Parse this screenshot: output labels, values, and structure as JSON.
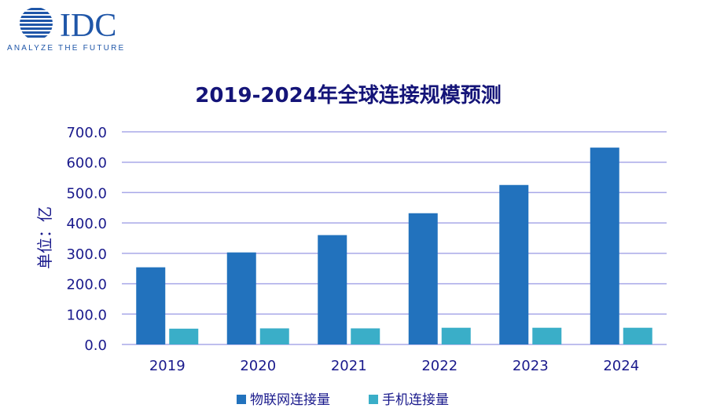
{
  "logo": {
    "brand": "IDC",
    "tagline": "ANALYZE THE FUTURE"
  },
  "chart_data": {
    "type": "bar",
    "title": "2019-2024年全球连接规模预测",
    "xlabel": "",
    "ylabel": "单位：亿",
    "categories": [
      "2019",
      "2020",
      "2021",
      "2022",
      "2023",
      "2024"
    ],
    "series": [
      {
        "name": "物联网连接量",
        "values": [
          254,
          303,
          360,
          432,
          525,
          648
        ],
        "color": "#2272bd"
      },
      {
        "name": "手机连接量",
        "values": [
          52,
          53,
          53,
          55,
          55,
          55
        ],
        "color": "#3aaec8"
      }
    ],
    "ylim": [
      0,
      700
    ],
    "yticks": [
      "0.0",
      "100.0",
      "200.0",
      "300.0",
      "400.0",
      "500.0",
      "600.0",
      "700.0"
    ],
    "grid": true,
    "legend": "bottom",
    "colors": {
      "text": "#1a1a8c",
      "grid": "#a8a8e8",
      "title": "#141478"
    }
  }
}
